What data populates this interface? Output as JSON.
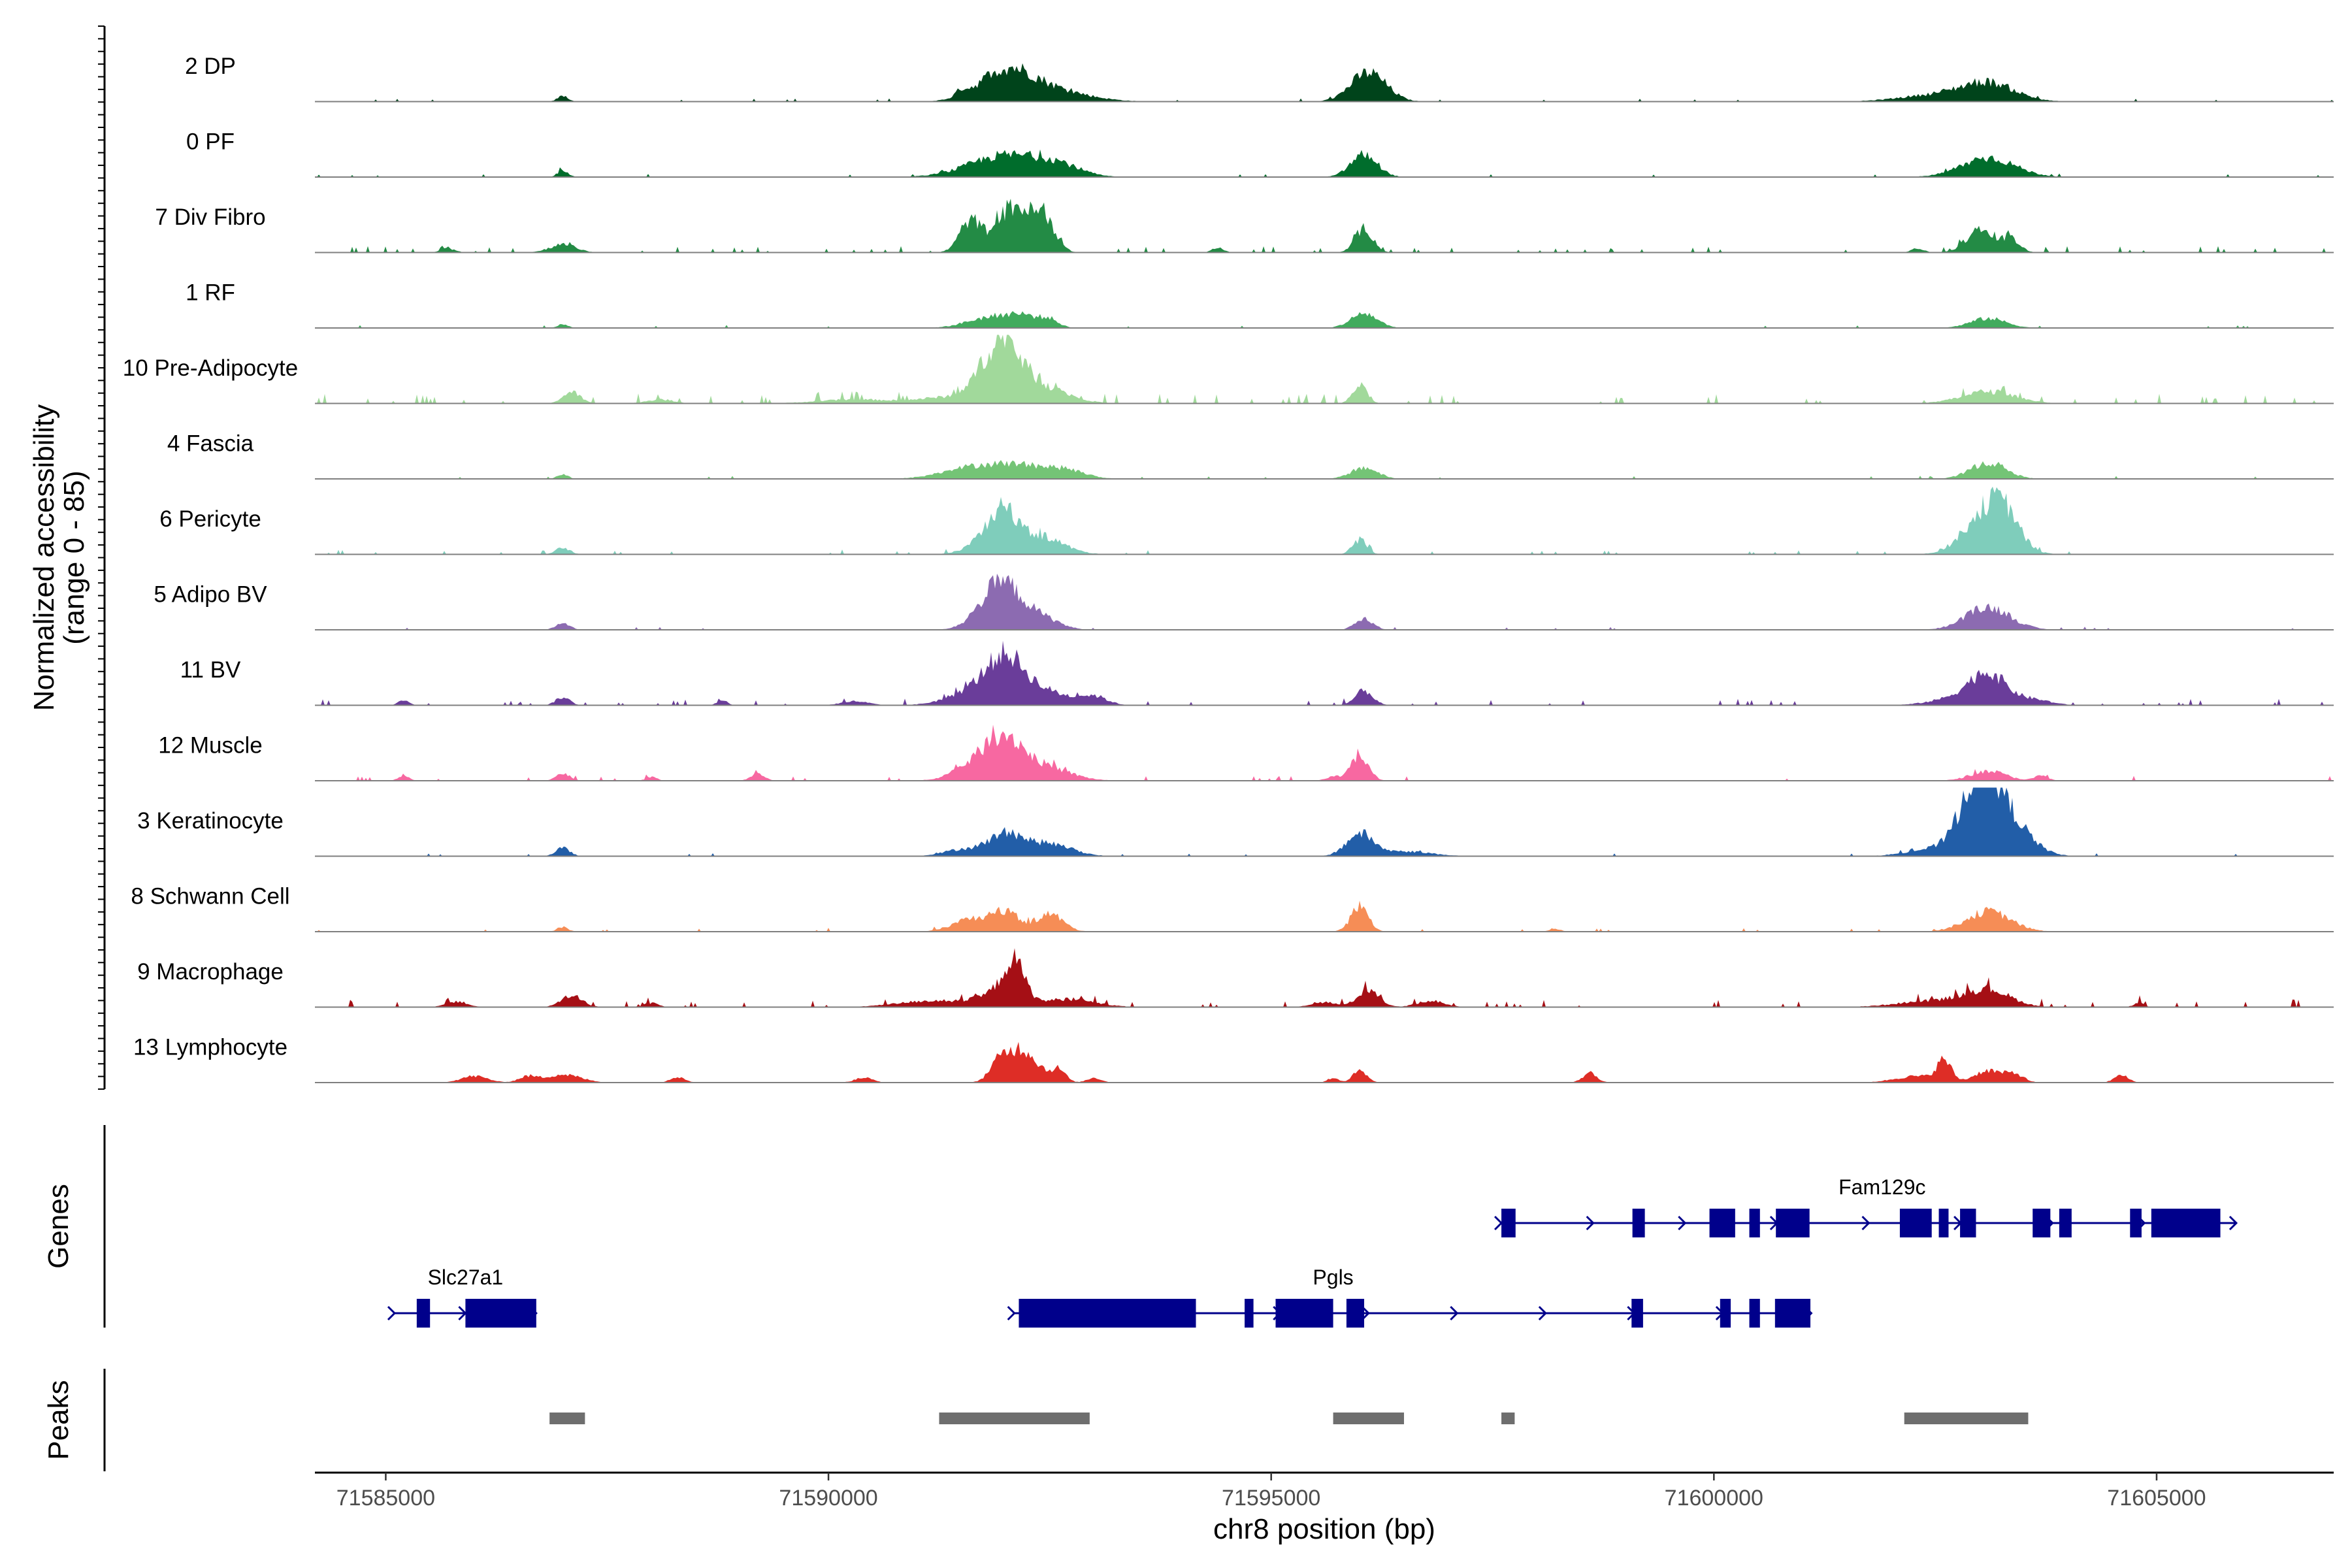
{
  "chart_data": {
    "type": "area",
    "title": "",
    "ylabel_line1": "Normalized accessibility",
    "ylabel_line2": "(range 0 - 85)",
    "y_range": [
      0,
      85
    ],
    "xlabel": "chr8 position (bp)",
    "x_range": [
      71584200,
      71607000
    ],
    "x_ticks": [
      71585000,
      71590000,
      71595000,
      71600000,
      71605000
    ],
    "x_tick_labels": [
      "71585000",
      "71590000",
      "71595000",
      "71600000",
      "71605000"
    ],
    "genes_label": "Genes",
    "peaks_label": "Peaks",
    "tracks": [
      {
        "name": "2 DP",
        "color": "#00441b",
        "noise": 0.5,
        "peaks": [
          [
            71587000,
            60,
            7
          ],
          [
            71591500,
            60,
            7
          ],
          [
            71592000,
            300,
            36
          ],
          [
            71592500,
            400,
            14
          ],
          [
            71596100,
            200,
            36
          ],
          [
            71602500,
            400,
            8
          ],
          [
            71603100,
            300,
            22
          ]
        ]
      },
      {
        "name": "0 PF",
        "color": "#006d2c",
        "noise": 0.5,
        "peaks": [
          [
            71587000,
            60,
            8
          ],
          [
            71592000,
            400,
            27
          ],
          [
            71592600,
            250,
            12
          ],
          [
            71596050,
            150,
            28
          ],
          [
            71603100,
            300,
            24
          ]
        ]
      },
      {
        "name": "7 Div Fibro",
        "color": "#238b45",
        "noise": 1.5,
        "peaks": [
          [
            71585700,
            80,
            5
          ],
          [
            71587000,
            150,
            10
          ],
          [
            71591600,
            120,
            38
          ],
          [
            71592100,
            200,
            58
          ],
          [
            71592450,
            120,
            35
          ],
          [
            71594400,
            60,
            7
          ],
          [
            71596050,
            100,
            30
          ],
          [
            71602300,
            70,
            5
          ],
          [
            71603000,
            150,
            28
          ],
          [
            71603350,
            100,
            18
          ]
        ]
      },
      {
        "name": "1 RF",
        "color": "#41ab5d",
        "noise": 0.5,
        "peaks": [
          [
            71587000,
            60,
            5
          ],
          [
            71591800,
            250,
            12
          ],
          [
            71592200,
            200,
            14
          ],
          [
            71592500,
            100,
            8
          ],
          [
            71596050,
            150,
            18
          ],
          [
            71603100,
            200,
            12
          ]
        ]
      },
      {
        "name": "10 Pre-Adipocyte",
        "color": "#a1d99b",
        "noise": 2.5,
        "peaks": [
          [
            71587100,
            100,
            14
          ],
          [
            71588100,
            150,
            5
          ],
          [
            71590300,
            400,
            5
          ],
          [
            71591300,
            300,
            7
          ],
          [
            71591800,
            200,
            25
          ],
          [
            71592000,
            200,
            55
          ],
          [
            71592400,
            300,
            20
          ],
          [
            71596000,
            80,
            22
          ],
          [
            71603100,
            300,
            15
          ]
        ]
      },
      {
        "name": "4 Fascia",
        "color": "#74c476",
        "noise": 0.5,
        "peaks": [
          [
            71587000,
            60,
            6
          ],
          [
            71591500,
            300,
            8
          ],
          [
            71592100,
            400,
            18
          ],
          [
            71592700,
            200,
            7
          ],
          [
            71596050,
            150,
            14
          ],
          [
            71603100,
            200,
            20
          ]
        ]
      },
      {
        "name": "6 Pericyte",
        "color": "#7fcdbb",
        "noise": 1.0,
        "peaks": [
          [
            71587000,
            80,
            8
          ],
          [
            71591800,
            200,
            20
          ],
          [
            71592000,
            150,
            40
          ],
          [
            71592400,
            250,
            22
          ],
          [
            71596000,
            80,
            18
          ],
          [
            71603100,
            250,
            56
          ],
          [
            71603300,
            150,
            22
          ]
        ]
      },
      {
        "name": "5 Adipo BV",
        "color": "#8c6bb1",
        "noise": 0.5,
        "peaks": [
          [
            71587000,
            80,
            8
          ],
          [
            71591800,
            200,
            20
          ],
          [
            71592000,
            200,
            45
          ],
          [
            71592400,
            200,
            15
          ],
          [
            71596050,
            100,
            14
          ],
          [
            71603100,
            250,
            28
          ]
        ]
      },
      {
        "name": "11 BV",
        "color": "#6a3d9a",
        "noise": 1.5,
        "peaks": [
          [
            71585200,
            60,
            6
          ],
          [
            71587000,
            80,
            10
          ],
          [
            71588800,
            60,
            6
          ],
          [
            71590300,
            150,
            5
          ],
          [
            71591700,
            300,
            20
          ],
          [
            71592000,
            200,
            45
          ],
          [
            71592400,
            300,
            18
          ],
          [
            71593000,
            150,
            10
          ],
          [
            71596050,
            100,
            18
          ],
          [
            71602800,
            300,
            10
          ],
          [
            71603100,
            200,
            35
          ],
          [
            71603600,
            200,
            7
          ]
        ]
      },
      {
        "name": "12 Muscle",
        "color": "#f768a1",
        "noise": 1.0,
        "peaks": [
          [
            71585200,
            60,
            6
          ],
          [
            71587000,
            80,
            9
          ],
          [
            71588000,
            60,
            5
          ],
          [
            71589200,
            80,
            8
          ],
          [
            71591700,
            250,
            22
          ],
          [
            71592000,
            200,
            40
          ],
          [
            71592400,
            300,
            18
          ],
          [
            71595700,
            80,
            5
          ],
          [
            71596000,
            100,
            30
          ],
          [
            71603100,
            200,
            12
          ],
          [
            71603700,
            80,
            6
          ]
        ]
      },
      {
        "name": "3 Keratinocyte",
        "color": "#225ea8",
        "noise": 0.5,
        "peaks": [
          [
            71587000,
            80,
            10
          ],
          [
            71591500,
            200,
            8
          ],
          [
            71592000,
            200,
            27
          ],
          [
            71592500,
            250,
            15
          ],
          [
            71596000,
            150,
            27
          ],
          [
            71596500,
            300,
            6
          ],
          [
            71602500,
            300,
            9
          ],
          [
            71603000,
            200,
            90
          ],
          [
            71603300,
            250,
            45
          ]
        ]
      },
      {
        "name": "8 Schwann Cell",
        "color": "#f68d56",
        "noise": 0.7,
        "peaks": [
          [
            71587000,
            60,
            6
          ],
          [
            71591600,
            200,
            15
          ],
          [
            71592000,
            150,
            25
          ],
          [
            71592500,
            150,
            22
          ],
          [
            71596000,
            100,
            30
          ],
          [
            71598200,
            60,
            4
          ],
          [
            71603100,
            250,
            25
          ]
        ]
      },
      {
        "name": "9 Macrophage",
        "color": "#a50f15",
        "noise": 2.0,
        "peaks": [
          [
            71585800,
            120,
            7
          ],
          [
            71587100,
            120,
            14
          ],
          [
            71588000,
            80,
            5
          ],
          [
            71591200,
            400,
            8
          ],
          [
            71591900,
            200,
            15
          ],
          [
            71592100,
            120,
            48
          ],
          [
            71592700,
            300,
            10
          ],
          [
            71595600,
            150,
            6
          ],
          [
            71596100,
            120,
            22
          ],
          [
            71596800,
            150,
            8
          ],
          [
            71602500,
            400,
            8
          ],
          [
            71603100,
            250,
            20
          ],
          [
            71604800,
            60,
            5
          ]
        ]
      },
      {
        "name": "13 Lymphocyte",
        "color": "#de2d26",
        "noise": 0.0,
        "peaks": [
          [
            71586000,
            150,
            8
          ],
          [
            71586600,
            100,
            7
          ],
          [
            71587000,
            200,
            10
          ],
          [
            71588300,
            80,
            7
          ],
          [
            71590400,
            100,
            6
          ],
          [
            71592100,
            150,
            32
          ],
          [
            71591900,
            100,
            15
          ],
          [
            71592300,
            150,
            20
          ],
          [
            71592600,
            80,
            15
          ],
          [
            71593000,
            80,
            6
          ],
          [
            71595700,
            60,
            6
          ],
          [
            71596000,
            80,
            14
          ],
          [
            71598600,
            80,
            12
          ],
          [
            71602300,
            250,
            8
          ],
          [
            71602600,
            80,
            25
          ],
          [
            71603100,
            150,
            15
          ],
          [
            71603400,
            100,
            10
          ],
          [
            71604600,
            80,
            9
          ]
        ]
      }
    ],
    "genes": [
      {
        "name": "Fam129c",
        "row": 0,
        "start": 71597600,
        "end": 71605900,
        "strand": "+",
        "label_pos": 71601900,
        "exons": [
          [
            71597600,
            71597760
          ],
          [
            71599080,
            71599220
          ],
          [
            71599950,
            71600240
          ],
          [
            71600400,
            71600520
          ],
          [
            71600700,
            71601080
          ],
          [
            71602100,
            71602460
          ],
          [
            71602540,
            71602650
          ],
          [
            71602780,
            71602960
          ],
          [
            71603600,
            71603800
          ],
          [
            71603900,
            71604040
          ],
          [
            71604700,
            71604830
          ],
          [
            71604940,
            71605720
          ]
        ]
      },
      {
        "name": "Slc27a1",
        "row": 1,
        "start": 71585100,
        "end": 71586700,
        "strand": "+",
        "label_pos": 71585900,
        "exons": [
          [
            71585350,
            71585500
          ],
          [
            71585900,
            71586700
          ]
        ]
      },
      {
        "name": "Pgls",
        "row": 1,
        "start": 71592100,
        "end": 71601100,
        "strand": "+",
        "label_pos": 71595700,
        "exons": [
          [
            71592150,
            71594150
          ],
          [
            71594700,
            71594800
          ],
          [
            71595050,
            71595700
          ],
          [
            71595850,
            71596050
          ],
          [
            71599070,
            71599200
          ],
          [
            71600070,
            71600190
          ],
          [
            71600400,
            71600520
          ],
          [
            71600690,
            71601090
          ]
        ]
      }
    ],
    "peaks": [
      [
        71586850,
        71587250
      ],
      [
        71591250,
        71592950
      ],
      [
        71595700,
        71596500
      ],
      [
        71597600,
        71597750
      ],
      [
        71602150,
        71603550
      ]
    ]
  }
}
